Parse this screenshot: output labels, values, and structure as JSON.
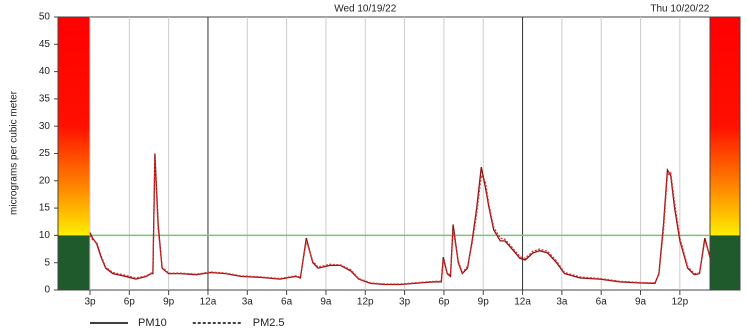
{
  "chart_data": {
    "type": "line",
    "ylabel": "micrograms per cubic meter",
    "annotations": [
      {
        "x": 21,
        "text": "Wed 10/19/22"
      },
      {
        "x": 45,
        "text": "Thu 10/20/22"
      }
    ],
    "xlim": [
      0,
      47.3
    ],
    "xticks": [
      {
        "value": 0,
        "label": "3p"
      },
      {
        "value": 3,
        "label": "6p"
      },
      {
        "value": 6,
        "label": "9p"
      },
      {
        "value": 9,
        "label": "12a"
      },
      {
        "value": 12,
        "label": "3a"
      },
      {
        "value": 15,
        "label": "6a"
      },
      {
        "value": 18,
        "label": "9a"
      },
      {
        "value": 21,
        "label": "12p"
      },
      {
        "value": 24,
        "label": "3p"
      },
      {
        "value": 27,
        "label": "6p"
      },
      {
        "value": 30,
        "label": "9p"
      },
      {
        "value": 33,
        "label": "12a"
      },
      {
        "value": 36,
        "label": "3a"
      },
      {
        "value": 39,
        "label": "6a"
      },
      {
        "value": 42,
        "label": "9a"
      },
      {
        "value": 45,
        "label": "12p"
      }
    ],
    "ylim": [
      0,
      50
    ],
    "yticks": [
      0,
      5,
      10,
      15,
      20,
      25,
      30,
      35,
      40,
      45,
      50
    ],
    "threshold": 10,
    "threshold_color": "#7cc47c",
    "x": [
      0,
      0.2,
      0.5,
      0.85,
      1.2,
      1.75,
      2.7,
      3.5,
      4.3,
      4.65,
      4.8,
      4.95,
      5.2,
      5.5,
      6,
      6.9,
      8.1,
      9.2,
      10.35,
      11.5,
      13,
      14.5,
      15.7,
      16.05,
      16.5,
      17,
      17.4,
      18.3,
      19.1,
      19.9,
      20.5,
      21.4,
      22.5,
      23.7,
      25.2,
      26.3,
      26.8,
      26.95,
      27.25,
      27.5,
      27.7,
      28.1,
      28.4,
      28.8,
      29.15,
      29.5,
      29.85,
      30.15,
      30.45,
      30.8,
      31.3,
      31.65,
      32.2,
      32.8,
      33.2,
      33.8,
      34.3,
      34.9,
      35.6,
      36.2,
      37.4,
      38.9,
      40.4,
      41.9,
      43.1,
      43.4,
      43.75,
      44.05,
      44.3,
      44.6,
      45,
      45.6,
      46.1,
      46.5,
      46.9,
      47.3
    ],
    "series": [
      {
        "name": "PM10",
        "color": "#8a1010",
        "dash": false,
        "values": [
          10.5,
          9.5,
          8.5,
          6,
          4,
          3,
          2.5,
          2,
          2.5,
          3,
          3,
          25,
          12,
          4,
          3,
          3,
          2.8,
          3.2,
          3,
          2.5,
          2.3,
          2,
          2.5,
          2.2,
          9.5,
          5,
          4,
          4.5,
          4.5,
          3.5,
          2,
          1.2,
          1,
          1,
          1.3,
          1.5,
          1.5,
          6,
          3,
          2.5,
          12,
          5,
          3,
          4,
          9,
          15,
          22.5,
          19,
          15,
          11,
          9,
          9,
          7.5,
          5.8,
          5.5,
          6.8,
          7.2,
          6.8,
          5,
          3,
          2.2,
          2,
          1.5,
          1.3,
          1.2,
          3,
          12,
          22,
          21,
          15,
          9,
          4,
          2.8,
          3,
          9.5,
          6
        ]
      },
      {
        "name": "PM2.5",
        "color": "#e03030",
        "dash": true,
        "values": [
          10,
          9.2,
          8.8,
          6.3,
          4.2,
          3.2,
          2.7,
          2.2,
          2.6,
          3.1,
          3.2,
          24,
          11,
          4.2,
          3.1,
          3.1,
          2.9,
          3.3,
          3.1,
          2.6,
          2.4,
          2.1,
          2.6,
          2.3,
          9,
          5.3,
          4.2,
          4.7,
          4.6,
          3.7,
          2.1,
          1.3,
          1.1,
          1.1,
          1.4,
          1.6,
          1.6,
          5.5,
          3.2,
          2.7,
          11,
          5.3,
          3.2,
          4.3,
          8.5,
          14,
          21,
          20,
          15.5,
          11.5,
          9.5,
          9.3,
          7.8,
          6.1,
          5.8,
          7.1,
          7.5,
          7.1,
          5.3,
          3.2,
          2.4,
          2.1,
          1.6,
          1.4,
          1.3,
          2.8,
          11,
          21,
          21.5,
          16,
          9.5,
          4.3,
          3,
          3.1,
          9,
          6.3
        ]
      }
    ]
  }
}
